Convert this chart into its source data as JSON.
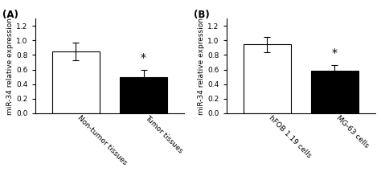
{
  "panel_A": {
    "label": "(A)",
    "categories": [
      "Non-tumor tissues",
      "Tumor tissues"
    ],
    "values": [
      0.85,
      0.5
    ],
    "errors": [
      0.12,
      0.1
    ],
    "colors": [
      "white",
      "black"
    ],
    "ylabel": "miR-34 relative expression",
    "ylim": [
      0,
      1.3
    ],
    "yticks": [
      0.0,
      0.2,
      0.4,
      0.6,
      0.8,
      1.0,
      1.2
    ],
    "star_positions": [
      1
    ],
    "star_y": [
      0.68
    ]
  },
  "panel_B": {
    "label": "(B)",
    "categories": [
      "hFOB 1.19 cells",
      "MG-63 cells"
    ],
    "values": [
      0.945,
      0.58
    ],
    "errors": [
      0.11,
      0.085
    ],
    "colors": [
      "white",
      "black"
    ],
    "ylabel": "miR-34 relative expression",
    "ylim": [
      0,
      1.3
    ],
    "yticks": [
      0.0,
      0.2,
      0.4,
      0.6,
      0.8,
      1.0,
      1.2
    ],
    "star_positions": [
      1
    ],
    "star_y": [
      0.75
    ]
  },
  "edge_color": "black",
  "bar_width": 0.7,
  "fig_bg": "white",
  "fontsize_ylabel": 6.5,
  "fontsize_tick": 6.5,
  "fontsize_panel": 8.5,
  "fontsize_star": 10,
  "fontsize_xticklabel": 6.5
}
